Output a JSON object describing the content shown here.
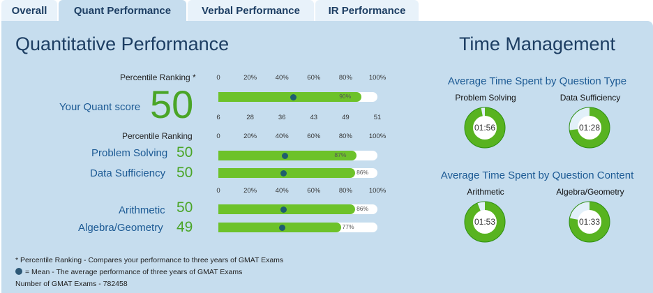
{
  "tabs": [
    "Overall",
    "Quant Performance",
    "Verbal Performance",
    "IR Performance"
  ],
  "left": {
    "title": "Quantitative Performance",
    "percentile_label_star": "Percentile Ranking *",
    "percentile_label": "Percentile Ranking",
    "pct_ticks": [
      "0",
      "20%",
      "40%",
      "60%",
      "80%",
      "100%"
    ],
    "score_ticks": [
      "6",
      "28",
      "36",
      "43",
      "49",
      "51"
    ],
    "quant": {
      "label": "Your Quant score",
      "score": "50",
      "percent": 90,
      "percent_label": "90%",
      "mean": 47
    },
    "type_rows": [
      {
        "label": "Problem Solving",
        "score": "50",
        "percent": 87,
        "percent_label": "87%",
        "mean": 42
      },
      {
        "label": "Data Sufficiency",
        "score": "50",
        "percent": 86,
        "percent_label": "86%",
        "mean": 41
      }
    ],
    "content_rows": [
      {
        "label": "Arithmetic",
        "score": "50",
        "percent": 86,
        "percent_label": "86%",
        "mean": 41
      },
      {
        "label": "Algebra/Geometry",
        "score": "49",
        "percent": 77,
        "percent_label": "77%",
        "mean": 40
      }
    ]
  },
  "right": {
    "title": "Time Management",
    "by_type_title": "Average Time Spent by Question Type",
    "by_content_title": "Average Time Spent by Question Content",
    "type_pies": [
      {
        "label": "Problem Solving",
        "time": "01:56",
        "fraction": 0.97
      },
      {
        "label": "Data Sufficiency",
        "time": "01:28",
        "fraction": 0.73
      }
    ],
    "content_pies": [
      {
        "label": "Arithmetic",
        "time": "01:53",
        "fraction": 0.94
      },
      {
        "label": "Algebra/Geometry",
        "time": "01:33",
        "fraction": 0.78
      }
    ],
    "colors": {
      "green": "#58b320",
      "light": "#e2f0f9",
      "dark_green": "#2e8f12"
    }
  },
  "footer": {
    "note1": "* Percentile Ranking - Compares your performance to three years of GMAT Exams",
    "note2": "= Mean - The average performance of three years of GMAT Exams",
    "note3": "Number of GMAT Exams - 782458"
  }
}
